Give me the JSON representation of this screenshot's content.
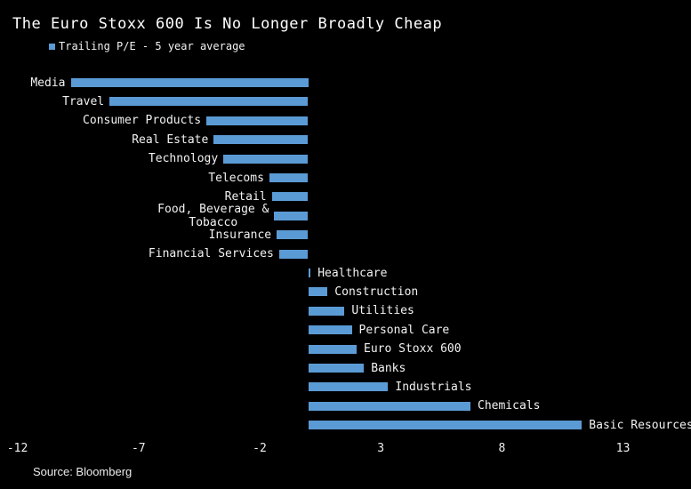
{
  "header": {
    "title": "The Euro Stoxx 600 Is No Longer Broadly Cheap"
  },
  "legend": {
    "label": "Trailing P/E - 5 year average",
    "marker_color": "#5b9bd5"
  },
  "footer": {
    "source": "Source: Bloomberg"
  },
  "colors": {
    "background": "#000000",
    "bar": "#5b9bd5",
    "text": "#f2f2f2"
  },
  "chart_data": {
    "type": "bar",
    "orientation": "horizontal",
    "title": "The Euro Stoxx 600 Is No Longer Broadly Cheap",
    "legend_entries": [
      "Trailing P/E - 5 year average"
    ],
    "categories": [
      "Media",
      "Travel",
      "Consumer Products",
      "Real Estate",
      "Technology",
      "Telecoms",
      "Retail",
      "Food, Beverage &\nTobacco",
      "Insurance",
      "Financial Services",
      "Healthcare",
      "Construction",
      "Utilities",
      "Personal Care",
      "Euro Stoxx 600",
      "Banks",
      "Industrials",
      "Chemicals",
      "Basic Resources"
    ],
    "series": [
      {
        "name": "Trailing P/E - 5 year average",
        "values": [
          -9.8,
          -8.2,
          -4.2,
          -3.9,
          -3.5,
          -1.6,
          -1.5,
          -1.4,
          -1.3,
          -1.2,
          0.1,
          0.8,
          1.5,
          1.8,
          2.0,
          2.3,
          3.3,
          6.7,
          11.3
        ]
      }
    ],
    "xlabel": "",
    "ylabel": "",
    "xticks": [
      -12,
      -7,
      -2,
      3,
      8,
      13
    ],
    "xlim": [
      -12.2,
      15.8
    ],
    "grid": false,
    "legend_position": "top-left",
    "source": "Source: Bloomberg"
  }
}
